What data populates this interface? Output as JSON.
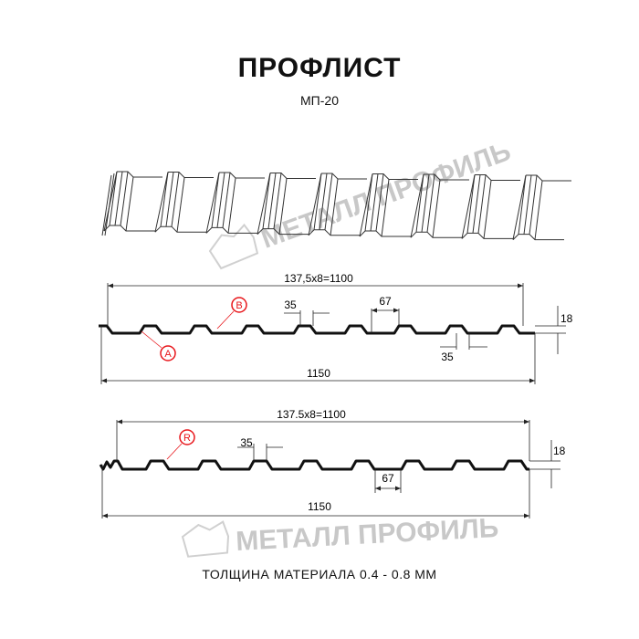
{
  "title": "ПРОФЛИСТ",
  "subtitle": "МП-20",
  "footer": "ТОЛЩИНА МАТЕРИАЛА 0.4 - 0.8 ММ",
  "watermark": "МЕТАЛЛ ПРОФИЛЬ",
  "profile_a": {
    "top_dim": "137,5x8=1100",
    "bottom_dim": "1150",
    "rib_top": "35",
    "rib_bottom": "35",
    "pitch": "67",
    "height": "18",
    "markers": [
      "A",
      "B"
    ]
  },
  "profile_b": {
    "top_dim": "137.5x8=1100",
    "bottom_dim": "1150",
    "rib_top": "35",
    "pitch": "67",
    "height": "18",
    "markers": [
      "R"
    ]
  },
  "colors": {
    "line": "#111111",
    "marker": "#e8161b",
    "watermark": "#c8c8c8"
  }
}
